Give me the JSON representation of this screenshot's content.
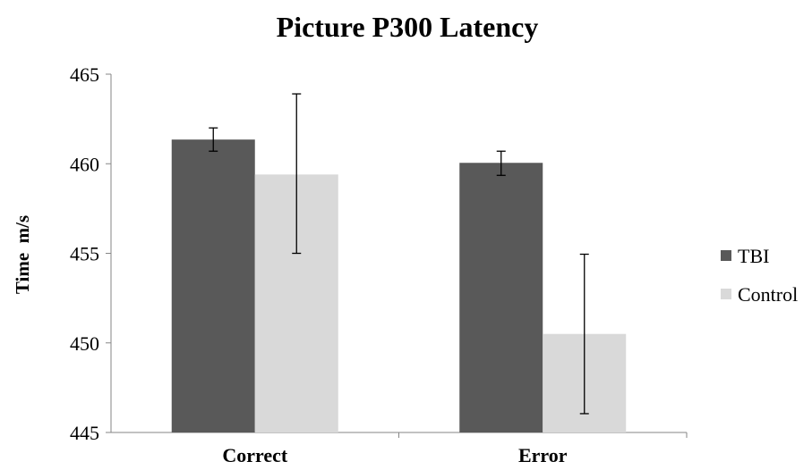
{
  "chart_data": {
    "type": "bar",
    "title": "Picture P300 Latency",
    "xlabel": "",
    "ylabel": "Time  m/s",
    "ylim": [
      445,
      465
    ],
    "yticks": [
      445,
      450,
      455,
      460,
      465
    ],
    "ytick_labels": [
      "445",
      "450",
      "455",
      "460",
      "465"
    ],
    "categories": [
      "Correct",
      "Error"
    ],
    "series": [
      {
        "name": "TBI",
        "color": "#595959",
        "values": [
          461.35,
          460.05
        ],
        "error_low": [
          460.7,
          459.35
        ],
        "error_high": [
          462.0,
          460.7
        ]
      },
      {
        "name": "Control",
        "color": "#d9d9d9",
        "values": [
          459.4,
          450.5
        ],
        "error_low": [
          455.0,
          446.05
        ],
        "error_high": [
          463.9,
          454.95
        ]
      }
    ],
    "legend_position": "right",
    "grid": false
  }
}
